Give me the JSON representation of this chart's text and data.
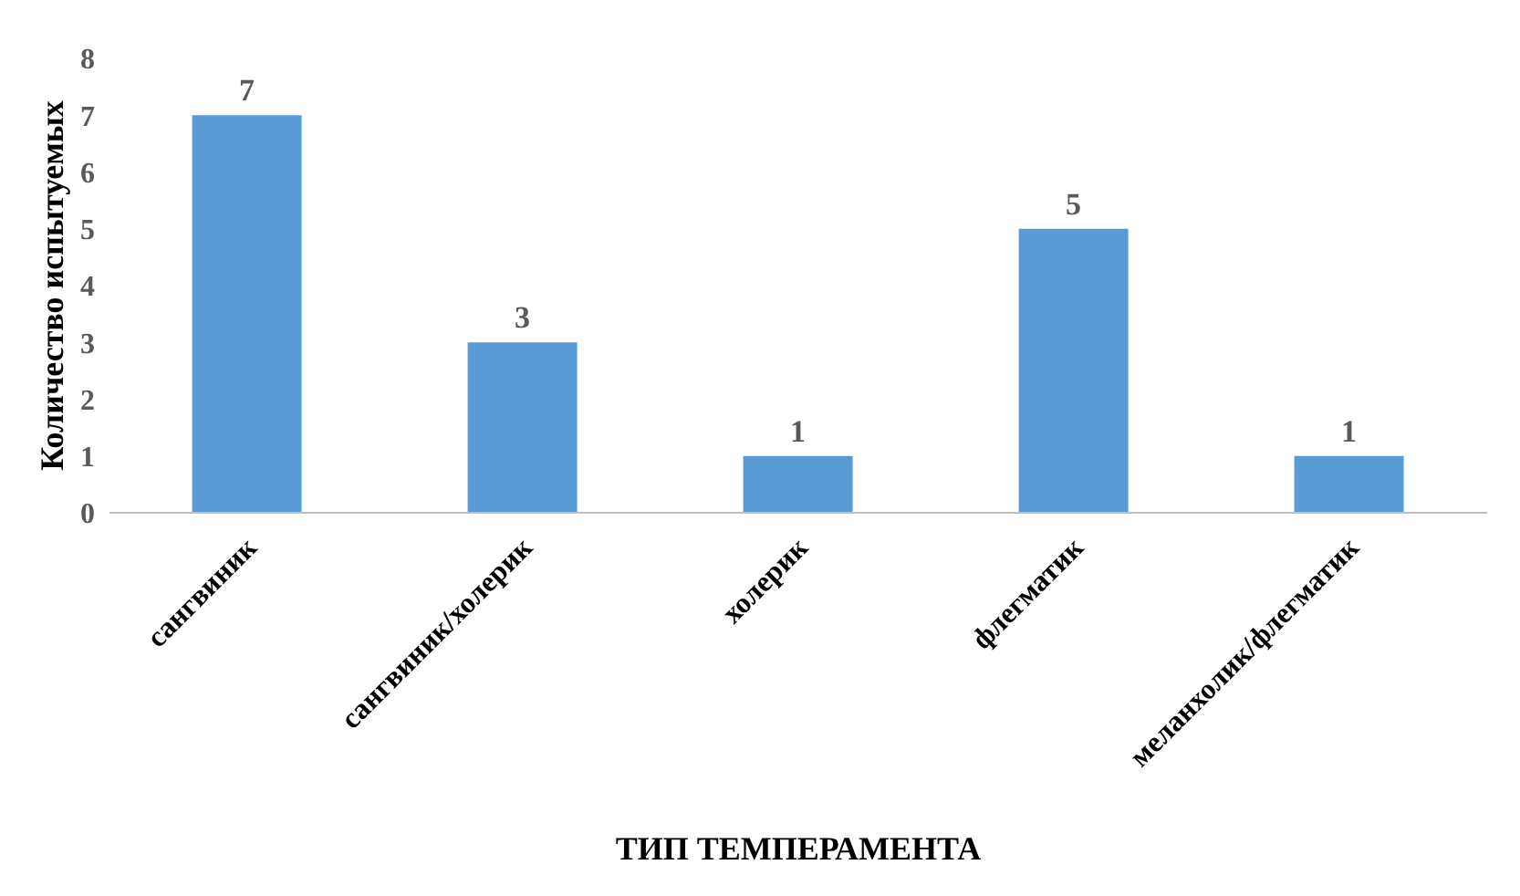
{
  "chart_data": {
    "type": "bar",
    "xlabel": "ТИП ТЕМПЕРАМЕНТА",
    "ylabel": "Количество испытуемых",
    "categories": [
      "сангвиник",
      "сангвиник/холерик",
      "холерик",
      "флегматик",
      "меланхолик/флегматик"
    ],
    "values": [
      7,
      3,
      1,
      5,
      1
    ],
    "color": "#5b9bd5",
    "ylim": [
      0,
      8
    ],
    "yticks": [
      0,
      1,
      2,
      3,
      4,
      5,
      6,
      7,
      8
    ],
    "grid": false,
    "data_labels": true
  }
}
